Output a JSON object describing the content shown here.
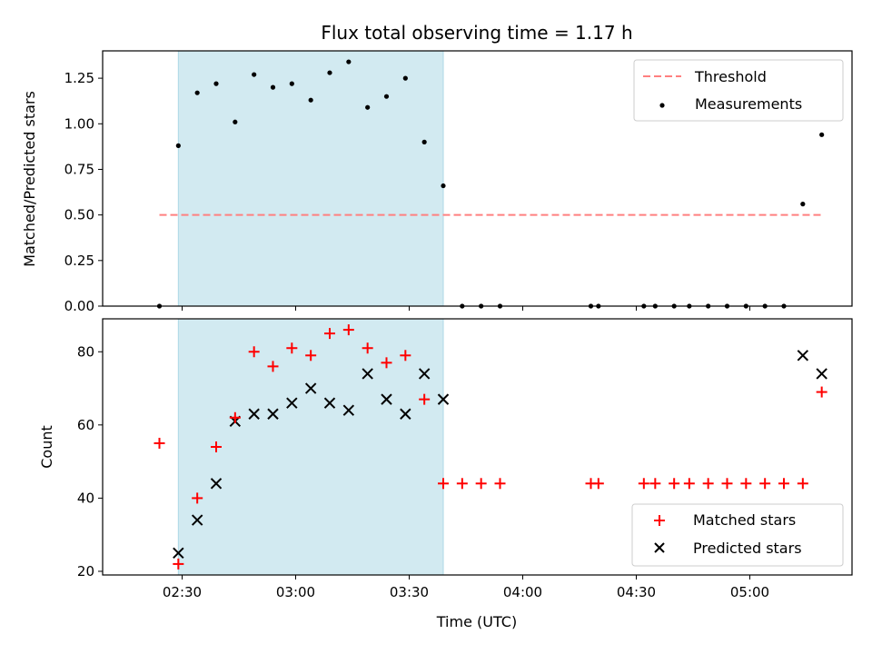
{
  "figure": {
    "title": "Flux total observing time = 1.17 h",
    "xlabel": "Time (UTC)",
    "x_tick_labels": [
      "02:30",
      "03:00",
      "03:30",
      "04:00",
      "04:30",
      "05:00"
    ],
    "colors": {
      "threshold": "#ff8080",
      "matched": "#ff0000",
      "predicted": "#000000",
      "shade": "#add8e6",
      "measurement": "#000000"
    }
  },
  "chart_data": [
    {
      "type": "scatter",
      "panel": "top",
      "ylabel": "Matched/Predicted stars",
      "ylim": [
        0,
        1.4
      ],
      "y_ticks": [
        "0.00",
        "0.25",
        "0.50",
        "0.75",
        "1.00",
        "1.25"
      ],
      "shaded_span": [
        "02:29",
        "03:39"
      ],
      "threshold": {
        "name": "Threshold",
        "value": 0.5,
        "x_range": [
          "02:24",
          "05:19"
        ]
      },
      "legend": [
        "Threshold",
        "Measurements"
      ],
      "legend_position": "top-right",
      "series": [
        {
          "name": "Measurements",
          "x": [
            "02:24",
            "02:29",
            "02:34",
            "02:39",
            "02:44",
            "02:49",
            "02:54",
            "02:59",
            "03:04",
            "03:09",
            "03:14",
            "03:19",
            "03:24",
            "03:29",
            "03:34",
            "03:39",
            "03:44",
            "03:49",
            "03:54",
            "04:18",
            "04:20",
            "04:32",
            "04:35",
            "04:40",
            "04:44",
            "04:49",
            "04:54",
            "04:59",
            "05:04",
            "05:09",
            "05:14",
            "05:19"
          ],
          "y": [
            0,
            0.88,
            1.17,
            1.22,
            1.01,
            1.27,
            1.2,
            1.22,
            1.13,
            1.28,
            1.34,
            1.09,
            1.15,
            1.25,
            0.9,
            0.66,
            0,
            0,
            0,
            0,
            0,
            0,
            0,
            0,
            0,
            0,
            0,
            0,
            0,
            0,
            0.56,
            0.94
          ]
        }
      ]
    },
    {
      "type": "scatter",
      "panel": "bottom",
      "ylabel": "Count",
      "ylim": [
        19,
        89
      ],
      "y_ticks": [
        "20",
        "40",
        "60",
        "80"
      ],
      "shaded_span": [
        "02:29",
        "03:39"
      ],
      "legend": [
        "Matched stars",
        "Predicted stars"
      ],
      "legend_position": "bottom-right",
      "series": [
        {
          "name": "Matched stars",
          "x": [
            "02:24",
            "02:29",
            "02:34",
            "02:39",
            "02:44",
            "02:49",
            "02:54",
            "02:59",
            "03:04",
            "03:09",
            "03:14",
            "03:19",
            "03:24",
            "03:29",
            "03:34",
            "03:39",
            "03:44",
            "03:49",
            "03:54",
            "04:18",
            "04:20",
            "04:32",
            "04:35",
            "04:40",
            "04:44",
            "04:49",
            "04:54",
            "04:59",
            "05:04",
            "05:09",
            "05:14",
            "05:19"
          ],
          "y": [
            55,
            22,
            40,
            54,
            62,
            80,
            76,
            81,
            79,
            85,
            86,
            81,
            77,
            79,
            67,
            44,
            44,
            44,
            44,
            44,
            44,
            44,
            44,
            44,
            44,
            44,
            44,
            44,
            44,
            44,
            44,
            69
          ]
        },
        {
          "name": "Predicted stars",
          "x": [
            "02:29",
            "02:34",
            "02:39",
            "02:44",
            "02:49",
            "02:54",
            "02:59",
            "03:04",
            "03:09",
            "03:14",
            "03:19",
            "03:24",
            "03:29",
            "03:34",
            "03:39",
            "05:14",
            "05:19"
          ],
          "y": [
            25,
            34,
            44,
            61,
            63,
            63,
            66,
            70,
            66,
            64,
            74,
            67,
            63,
            74,
            67,
            79,
            74
          ]
        }
      ]
    }
  ]
}
